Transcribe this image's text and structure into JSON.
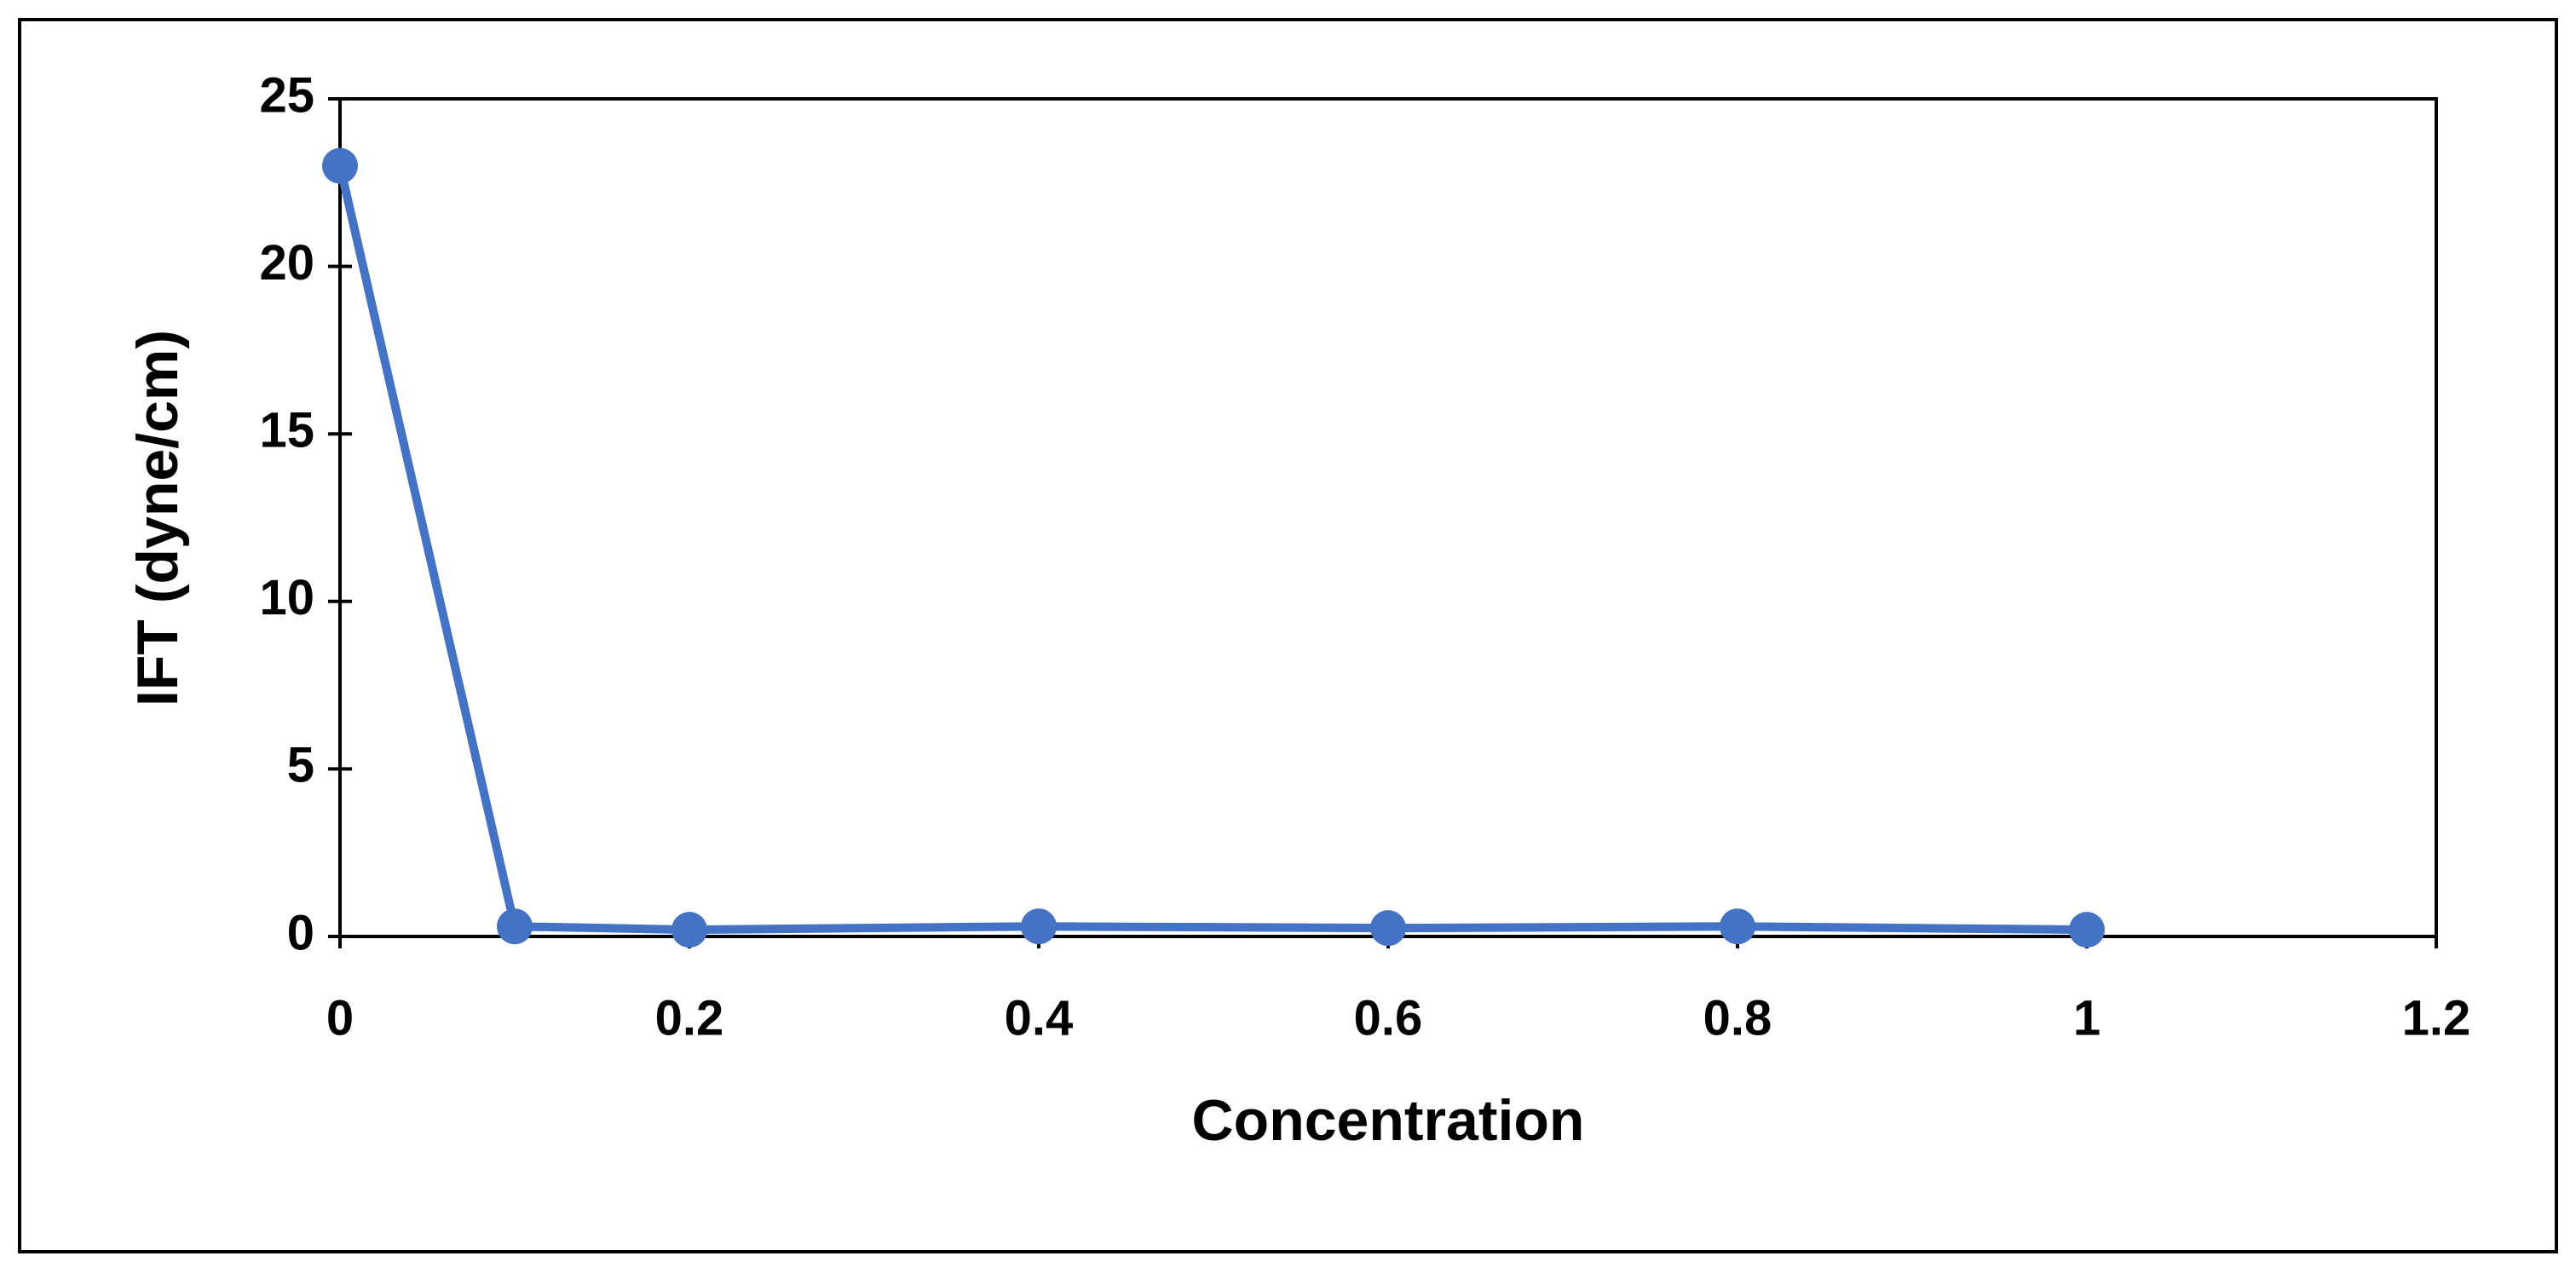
{
  "chart_data": {
    "type": "line",
    "x_label": "Concentration",
    "y_label": "IFT (dyne/cm)",
    "x": [
      0,
      0.1,
      0.2,
      0.4,
      0.6,
      0.8,
      1
    ],
    "series": [
      {
        "color": "#4472c4",
        "values": [
          23,
          0.3,
          0.2,
          0.3,
          0.25,
          0.3,
          0.2
        ]
      }
    ],
    "xlim": [
      0,
      1.2
    ],
    "xticks": [
      0,
      0.2,
      0.4,
      0.6,
      0.8,
      1,
      1.2
    ],
    "ylim": [
      0,
      25
    ],
    "yticks": [
      0,
      5,
      10,
      15,
      20,
      25
    ],
    "grid": false,
    "markers": true
  }
}
